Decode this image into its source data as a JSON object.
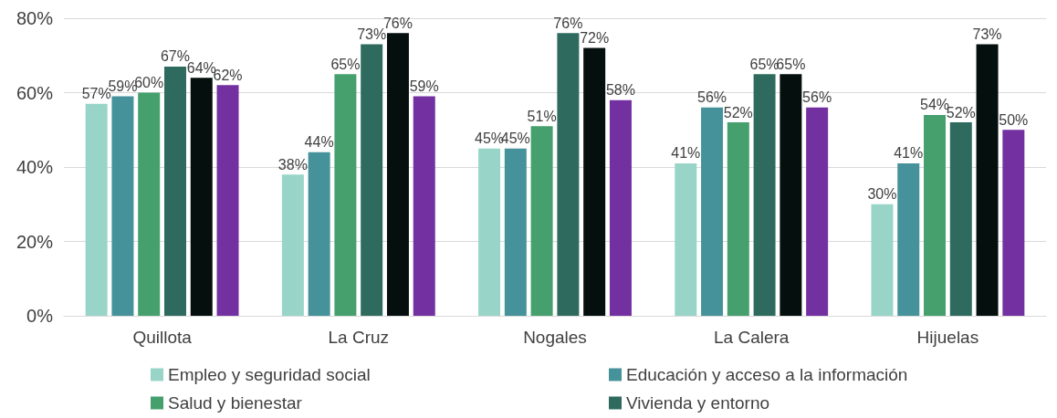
{
  "chart_data": {
    "type": "bar",
    "categories": [
      "Quillota",
      "La Cruz",
      "Nogales",
      "La Calera",
      "Hijuelas"
    ],
    "series": [
      {
        "name": "Empleo y seguridad social",
        "color": "#98d5c8",
        "values": [
          57,
          38,
          45,
          41,
          30
        ],
        "value_labels": [
          "57%",
          "38%",
          "45%",
          "41%",
          "30%"
        ]
      },
      {
        "name": "Educación y acceso a la información",
        "color": "#46929a",
        "values": [
          59,
          44,
          45,
          56,
          41
        ],
        "value_labels": [
          "59%",
          "44%",
          "45%",
          "56%",
          "41%"
        ]
      },
      {
        "name": "Salud y bienestar",
        "color": "#45a06e",
        "values": [
          60,
          65,
          51,
          52,
          54
        ],
        "value_labels": [
          "60%",
          "65%",
          "51%",
          "52%",
          "54%"
        ]
      },
      {
        "name": "Vivienda y entorno",
        "color": "#2e6b5e",
        "values": [
          67,
          73,
          76,
          65,
          52
        ],
        "value_labels": [
          "67%",
          "73%",
          "76%",
          "65%",
          "52%"
        ]
      },
      {
        "color": "#050f0e",
        "values": [
          64,
          76,
          72,
          65,
          73
        ],
        "value_labels": [
          "64%",
          "76%",
          "72%",
          "65%",
          "73%"
        ]
      },
      {
        "color": "#7330a0",
        "values": [
          62,
          59,
          58,
          56,
          50
        ],
        "value_labels": [
          "62%",
          "59%",
          "58%",
          "56%",
          "50%"
        ]
      }
    ],
    "ylim": [
      0,
      80
    ],
    "yticks": [
      {
        "value": 0,
        "label": "0%"
      },
      {
        "value": 20,
        "label": "20%"
      },
      {
        "value": 40,
        "label": "40%"
      },
      {
        "value": 60,
        "label": "60%"
      },
      {
        "value": 80,
        "label": "80%"
      }
    ],
    "grid": "y",
    "legend": "bottom"
  }
}
